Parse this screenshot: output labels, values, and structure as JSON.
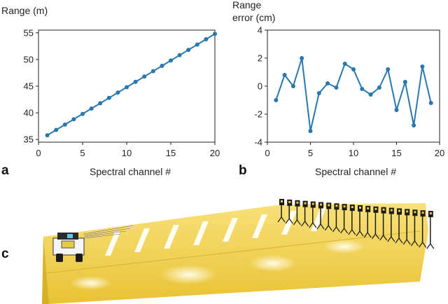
{
  "panels": {
    "a": "a",
    "b": "b",
    "c": "c"
  },
  "chart_data": [
    {
      "type": "line",
      "panel": "a",
      "title": "",
      "ylabel": "Range (m)",
      "xlabel": "Spectral channel #",
      "xlim": [
        0,
        20
      ],
      "ylim": [
        34.5,
        55.5
      ],
      "xticks": [
        0,
        5,
        10,
        15,
        20
      ],
      "yticks": [
        35,
        40,
        45,
        50,
        55
      ],
      "grid": false,
      "color": "#2878b0",
      "x": [
        1,
        2,
        3,
        4,
        5,
        6,
        7,
        8,
        9,
        10,
        11,
        12,
        13,
        14,
        15,
        16,
        17,
        18,
        19,
        20
      ],
      "y": [
        35.8,
        36.8,
        37.8,
        38.8,
        39.8,
        40.8,
        41.8,
        42.8,
        43.8,
        44.8,
        45.8,
        46.8,
        47.8,
        48.8,
        49.8,
        50.8,
        51.8,
        52.8,
        53.8,
        54.8
      ]
    },
    {
      "type": "line",
      "panel": "b",
      "title": "",
      "ylabel_lines": [
        "Range",
        "error (cm)"
      ],
      "xlabel": "Spectral channel #",
      "xlim": [
        0,
        20
      ],
      "ylim": [
        -4,
        4
      ],
      "xticks": [
        0,
        5,
        10,
        15,
        20
      ],
      "yticks": [
        -4,
        -2,
        0,
        2,
        4
      ],
      "grid": false,
      "color": "#2878b0",
      "x": [
        1,
        2,
        3,
        4,
        5,
        6,
        7,
        8,
        9,
        10,
        11,
        12,
        13,
        14,
        15,
        16,
        17,
        18,
        19
      ],
      "y": [
        -1.0,
        0.8,
        0.0,
        2.0,
        -3.2,
        -0.5,
        0.2,
        -0.1,
        1.6,
        1.2,
        -0.2,
        -0.6,
        -0.1,
        1.2,
        -1.7,
        0.3,
        -2.8,
        1.4,
        -1.2
      ]
    }
  ],
  "photo": {
    "name": "range-measurement-setup-photo",
    "floor_color": "#f2d25a",
    "floor_light_color": "#fff3b8",
    "stripe_color": "#ffffff",
    "target_color": "#1a1a1a",
    "target_count": 20
  }
}
